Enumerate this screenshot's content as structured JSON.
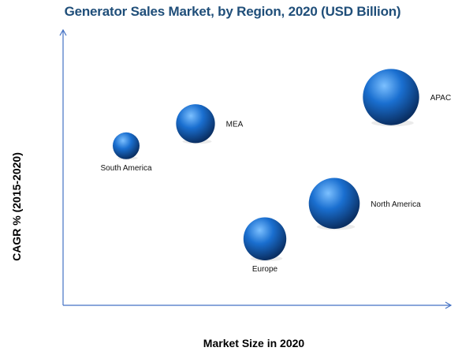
{
  "chart_data": {
    "type": "bubble",
    "title": "Generator Sales Market, by Region, 2020 (USD Billion)",
    "xlabel": "Market Size in 2020",
    "ylabel": "CAGR % (2015-2020)",
    "x_ticks": "none",
    "y_ticks": "none",
    "grid": false,
    "legend": "none",
    "series": [
      {
        "label": "South America",
        "x": 1.0,
        "y": 5.6,
        "size": 1.0
      },
      {
        "label": "MEA",
        "x": 2.1,
        "y": 6.1,
        "size": 1.45
      },
      {
        "label": "Europe",
        "x": 3.2,
        "y": 3.5,
        "size": 1.6
      },
      {
        "label": "North America",
        "x": 4.3,
        "y": 4.3,
        "size": 1.9
      },
      {
        "label": "APAC",
        "x": 5.2,
        "y": 6.7,
        "size": 2.1
      }
    ]
  },
  "colors": {
    "title": "#1f4e79",
    "axis": "#4472c4",
    "bubble_light": "#7cc0ff",
    "bubble_mid": "#1a6fd0",
    "bubble_dark": "#0a2f63"
  }
}
